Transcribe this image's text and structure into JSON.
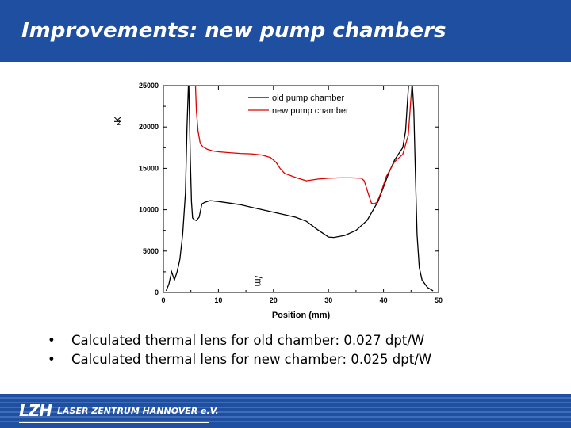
{
  "slide": {
    "title": "Improvements: new pump chambers",
    "bullets": [
      "Calculated thermal lens for old chamber: 0.027 dpt/W",
      "Calculated thermal lens for new chamber: 0.025 dpt/W"
    ],
    "bullet_symbol": "•",
    "footer_logo_mark": "LZH",
    "footer_logo_text": "LASER ZENTRUM HANNOVER e.V.",
    "colors": {
      "header": "#1e4fa0",
      "footer": "#1e4fa0",
      "old_series": "#000000",
      "new_series": "#e00000"
    }
  },
  "chart_data": {
    "type": "line",
    "xlabel": "Position (mm)",
    "ylabel_fragments": [
      "2",
      "K",
      "/m"
    ],
    "xlim": [
      0,
      50
    ],
    "ylim": [
      0,
      25000
    ],
    "xticks": [
      0,
      10,
      20,
      30,
      40,
      50
    ],
    "yticks": [
      0,
      5000,
      10000,
      15000,
      20000,
      25000
    ],
    "legend": "top-center",
    "grid": false,
    "series": [
      {
        "name": "old pump chamber",
        "color": "#000000",
        "x": [
          0.5,
          1,
          1.5,
          2,
          2.5,
          3,
          3.5,
          4,
          4.3,
          4.6,
          4.9,
          5.1,
          5.3,
          5.6,
          6.0,
          6.5,
          7.0,
          7.5,
          8.5,
          10,
          12,
          14,
          16,
          18,
          20,
          22,
          24,
          26,
          28,
          30,
          31,
          33,
          35,
          37,
          39,
          41,
          42,
          43,
          43.5,
          44,
          44.3,
          44.6,
          44.9,
          45.2,
          45.5,
          45.8,
          46.1,
          46.5,
          47,
          48,
          49
        ],
        "y": [
          200,
          1000,
          2500,
          1500,
          2500,
          4000,
          7000,
          12000,
          20000,
          26000,
          16000,
          11000,
          9000,
          8800,
          8700,
          9100,
          10700,
          10900,
          11100,
          11000,
          10800,
          10600,
          10300,
          10000,
          9700,
          9400,
          9100,
          8600,
          7600,
          6700,
          6650,
          6900,
          7500,
          8700,
          11000,
          14500,
          16000,
          17000,
          17500,
          19500,
          22500,
          25500,
          26000,
          25500,
          22000,
          14000,
          7000,
          3000,
          1500,
          600,
          200
        ]
      },
      {
        "name": "new pump chamber",
        "color": "#e00000",
        "x": [
          5.8,
          6.0,
          6.3,
          6.7,
          7.2,
          8,
          9,
          10,
          12,
          14,
          16,
          18,
          19.5,
          20.5,
          21.2,
          22,
          24,
          26,
          28,
          30,
          32,
          34,
          36,
          36.5,
          37.2,
          37.8,
          38.3,
          38.8,
          39.5,
          40.5,
          42,
          43.5,
          44.5,
          45.2
        ],
        "y": [
          25500,
          22000,
          19500,
          18000,
          17600,
          17300,
          17100,
          17000,
          16900,
          16800,
          16750,
          16600,
          16300,
          15700,
          15000,
          14400,
          13900,
          13500,
          13700,
          13800,
          13850,
          13850,
          13800,
          13500,
          12000,
          10800,
          10700,
          10900,
          12000,
          14000,
          15800,
          16700,
          19000,
          25500
        ]
      }
    ]
  }
}
